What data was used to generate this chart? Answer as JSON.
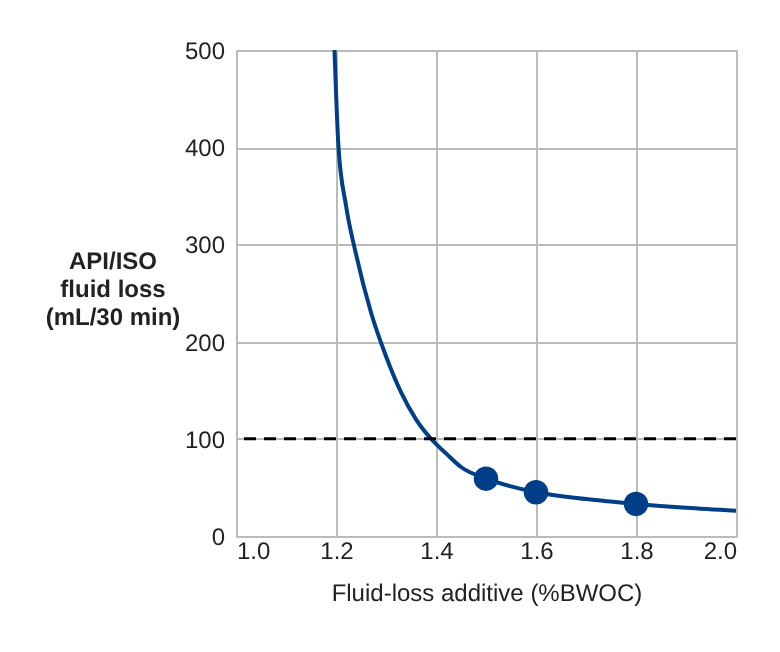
{
  "chart_data": {
    "type": "line",
    "xlabel": "Fluid-loss additive (%BWOC)",
    "ylabel": "API/ISO\nfluid loss\n(mL/30 min)",
    "xlim": [
      1.0,
      2.0
    ],
    "xticks": [
      {
        "value": 1.0,
        "label": "1.0"
      },
      {
        "value": 1.2,
        "label": "1.2"
      },
      {
        "value": 1.4,
        "label": "1.4"
      },
      {
        "value": 1.6,
        "label": "1.6"
      },
      {
        "value": 1.8,
        "label": "1.8"
      },
      {
        "value": 2.0,
        "label": "2.0"
      }
    ],
    "ylim": [
      0,
      500
    ],
    "yticks": [
      0,
      100,
      200,
      300,
      400,
      500
    ],
    "grid": true,
    "series": [
      {
        "color": "#003f87",
        "marker": "none",
        "x": [
          1.197,
          1.205,
          1.22,
          1.24,
          1.27,
          1.3,
          1.33,
          1.36,
          1.39,
          1.42,
          1.45,
          1.5,
          1.55,
          1.6,
          1.7,
          1.8,
          1.9,
          2.0
        ],
        "values": [
          500,
          400,
          340,
          290,
          230,
          185,
          148,
          120,
          100,
          85,
          71,
          59,
          51,
          45,
          38,
          33,
          29,
          26
        ]
      },
      {
        "type": "scatter",
        "color": "#003f87",
        "marker": "circle",
        "x": [
          1.5,
          1.6,
          1.8
        ],
        "values": [
          59,
          45,
          33
        ]
      }
    ],
    "ref_lines": [
      {
        "axis": "y",
        "value": 100,
        "color": "#000000",
        "line_style": "dashed"
      }
    ]
  }
}
